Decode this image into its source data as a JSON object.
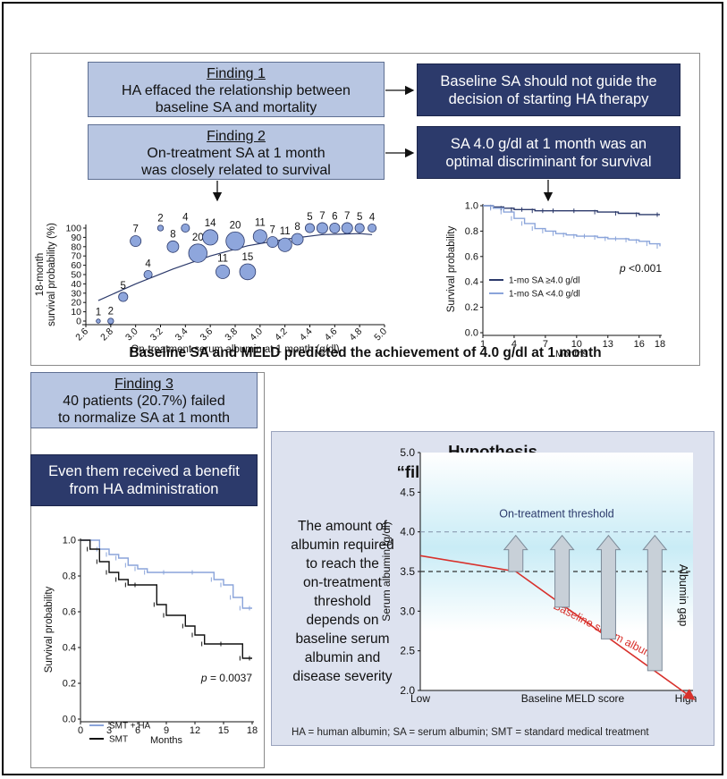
{
  "top": {
    "finding1": {
      "heading": "Finding 1",
      "lines": [
        "HA effaced the relationship between",
        "baseline SA and mortality"
      ]
    },
    "conclusion1": {
      "lines": [
        "Baseline SA should not guide the",
        "decision of starting HA therapy"
      ]
    },
    "finding2": {
      "heading": "Finding 2",
      "lines": [
        "On-treatment SA at 1 month",
        "was closely related to survival"
      ]
    },
    "conclusion2": {
      "lines": [
        "SA 4.0 g/dl at 1 month was an",
        "optimal discriminant for survival"
      ]
    },
    "footer": "Baseline SA and MELD predicted the achievement of 4.0 g/dl at 1 month"
  },
  "bottom_left": {
    "finding3": {
      "heading": "Finding 3",
      "lines": [
        "40 patients (20.7%) failed",
        "to normalize SA at 1 month"
      ]
    },
    "conclusion3": {
      "lines": [
        "Even them received a benefit",
        "from HA administration"
      ]
    }
  },
  "hypothesis": {
    "title": "Hypothesis",
    "subtitle": "“filling the albumin gap”",
    "body": [
      "The amount of",
      "albumin required",
      "to reach the",
      "on-treatment",
      "threshold",
      "depends on",
      "baseline serum",
      "albumin and",
      "disease severity"
    ],
    "footnote": "HA = human albumin; SA = serum albumin; SMT = standard medical treatment"
  },
  "colors": {
    "light_box": "#b8c6e2",
    "dark_box": "#2c3a6b",
    "dark_line": "#2c3a6b",
    "light_line": "#8aa4da",
    "bubble": "#8ea6dc",
    "red_line": "#d8312c"
  },
  "chart_data": [
    {
      "type": "scatter",
      "xlabel": "On-treatment serum albumin at 1 month (g/dl)",
      "ylabel": "18-month survival probability (%)",
      "xlim": [
        2.6,
        5.0
      ],
      "ylim": [
        0,
        100
      ],
      "xticks": [
        "2.6",
        "2.8",
        "3.0",
        "3.2",
        "3.4",
        "3.6",
        "3.8",
        "4.0",
        "4.2",
        "4.4",
        "4.6",
        "4.8",
        "5.0"
      ],
      "yticks": [
        "0",
        "10",
        "20",
        "30",
        "40",
        "50",
        "60",
        "70",
        "80",
        "90",
        "100"
      ],
      "points": [
        {
          "x": 2.7,
          "y": 0,
          "n": "1"
        },
        {
          "x": 2.8,
          "y": 0,
          "n": "2"
        },
        {
          "x": 2.9,
          "y": 26,
          "n": "5"
        },
        {
          "x": 3.0,
          "y": 86,
          "n": "7"
        },
        {
          "x": 3.1,
          "y": 50,
          "n": "4"
        },
        {
          "x": 3.2,
          "y": 100,
          "n": "2"
        },
        {
          "x": 3.3,
          "y": 80,
          "n": "8"
        },
        {
          "x": 3.4,
          "y": 100,
          "n": "4"
        },
        {
          "x": 3.5,
          "y": 73,
          "n": "20"
        },
        {
          "x": 3.6,
          "y": 90,
          "n": "14"
        },
        {
          "x": 3.7,
          "y": 53,
          "n": "11"
        },
        {
          "x": 3.8,
          "y": 86,
          "n": "20"
        },
        {
          "x": 3.9,
          "y": 53,
          "n": "15"
        },
        {
          "x": 4.0,
          "y": 91,
          "n": "11"
        },
        {
          "x": 4.1,
          "y": 85,
          "n": "7"
        },
        {
          "x": 4.2,
          "y": 82,
          "n": "11"
        },
        {
          "x": 4.3,
          "y": 88,
          "n": "8"
        },
        {
          "x": 4.4,
          "y": 100,
          "n": "5"
        },
        {
          "x": 4.5,
          "y": 100,
          "n": "7"
        },
        {
          "x": 4.6,
          "y": 100,
          "n": "6"
        },
        {
          "x": 4.7,
          "y": 100,
          "n": "7"
        },
        {
          "x": 4.8,
          "y": 100,
          "n": "5"
        },
        {
          "x": 4.9,
          "y": 100,
          "n": "4"
        }
      ],
      "fit": {
        "x": [
          2.7,
          3.0,
          3.3,
          3.6,
          3.9,
          4.2,
          4.5,
          4.8,
          4.9
        ],
        "y": [
          22,
          40,
          56,
          70,
          81,
          88,
          93,
          94,
          93
        ]
      }
    },
    {
      "type": "line",
      "xlabel": "Months",
      "ylabel": "Survival probability",
      "xlim": [
        1,
        18
      ],
      "ylim": [
        0,
        1
      ],
      "xticks": [
        "1",
        "4",
        "7",
        "10",
        "13",
        "16",
        "18"
      ],
      "yticks": [
        "0.0",
        "0.2",
        "0.4",
        "0.6",
        "0.8",
        "1.0"
      ],
      "annotation": "p <0.001",
      "series": [
        {
          "name": "1-mo SA ≥4.0 g/dl",
          "color": "#2c3a6b",
          "x": [
            1,
            2,
            3,
            4,
            5,
            6,
            7,
            8,
            10,
            12,
            14,
            16,
            18
          ],
          "y": [
            1.0,
            0.99,
            0.98,
            0.97,
            0.97,
            0.96,
            0.96,
            0.96,
            0.96,
            0.95,
            0.94,
            0.93,
            0.93
          ]
        },
        {
          "name": "1-mo SA <4.0 g/dl",
          "color": "#8aa4da",
          "x": [
            1,
            2,
            3,
            4,
            5,
            6,
            7,
            8,
            9,
            10,
            11,
            12,
            13,
            14,
            15,
            16,
            17,
            18
          ],
          "y": [
            1.0,
            0.98,
            0.95,
            0.9,
            0.86,
            0.82,
            0.8,
            0.78,
            0.77,
            0.76,
            0.76,
            0.75,
            0.74,
            0.74,
            0.73,
            0.72,
            0.7,
            0.68
          ]
        }
      ]
    },
    {
      "type": "line",
      "xlabel": "Months",
      "ylabel": "Survival probability",
      "xlim": [
        0,
        18
      ],
      "ylim": [
        0,
        1
      ],
      "xticks": [
        "0",
        "3",
        "6",
        "9",
        "12",
        "15",
        "18"
      ],
      "yticks": [
        "0.0",
        "0.2",
        "0.4",
        "0.6",
        "0.8",
        "1.0"
      ],
      "annotation": "p = 0.0037",
      "series": [
        {
          "name": "SMT + HA",
          "color": "#8aa4da",
          "x": [
            0,
            2,
            3,
            4,
            5,
            6,
            7,
            9,
            12,
            14,
            15,
            16,
            17,
            18
          ],
          "y": [
            1.0,
            0.95,
            0.92,
            0.9,
            0.86,
            0.84,
            0.82,
            0.82,
            0.82,
            0.78,
            0.75,
            0.68,
            0.62,
            0.62
          ]
        },
        {
          "name": "SMT",
          "color": "#111111",
          "x": [
            0,
            1,
            2,
            3,
            4,
            5,
            6,
            8,
            9,
            11,
            12,
            13,
            15,
            17,
            18
          ],
          "y": [
            1.0,
            0.95,
            0.88,
            0.82,
            0.78,
            0.75,
            0.75,
            0.64,
            0.58,
            0.52,
            0.47,
            0.42,
            0.42,
            0.34,
            0.34
          ]
        }
      ]
    },
    {
      "type": "line",
      "xlabel": "Baseline MELD score",
      "ylabel": "Serum albumin (g/dl)",
      "x_categories": [
        "Low",
        "High"
      ],
      "ylim": [
        2.0,
        5.0
      ],
      "yticks": [
        "2.0",
        "2.5",
        "3.0",
        "3.5",
        "4.0",
        "4.5",
        "5.0"
      ],
      "threshold_label": "On-treatment threshold",
      "gap_label": "Albumin gap",
      "series": [
        {
          "name": "Baseline serum albumin",
          "color": "#d8312c",
          "x": [
            0,
            0.35,
            1.0
          ],
          "y": [
            3.7,
            3.5,
            1.9
          ]
        }
      ],
      "hlines": [
        4.0,
        3.5
      ]
    }
  ]
}
